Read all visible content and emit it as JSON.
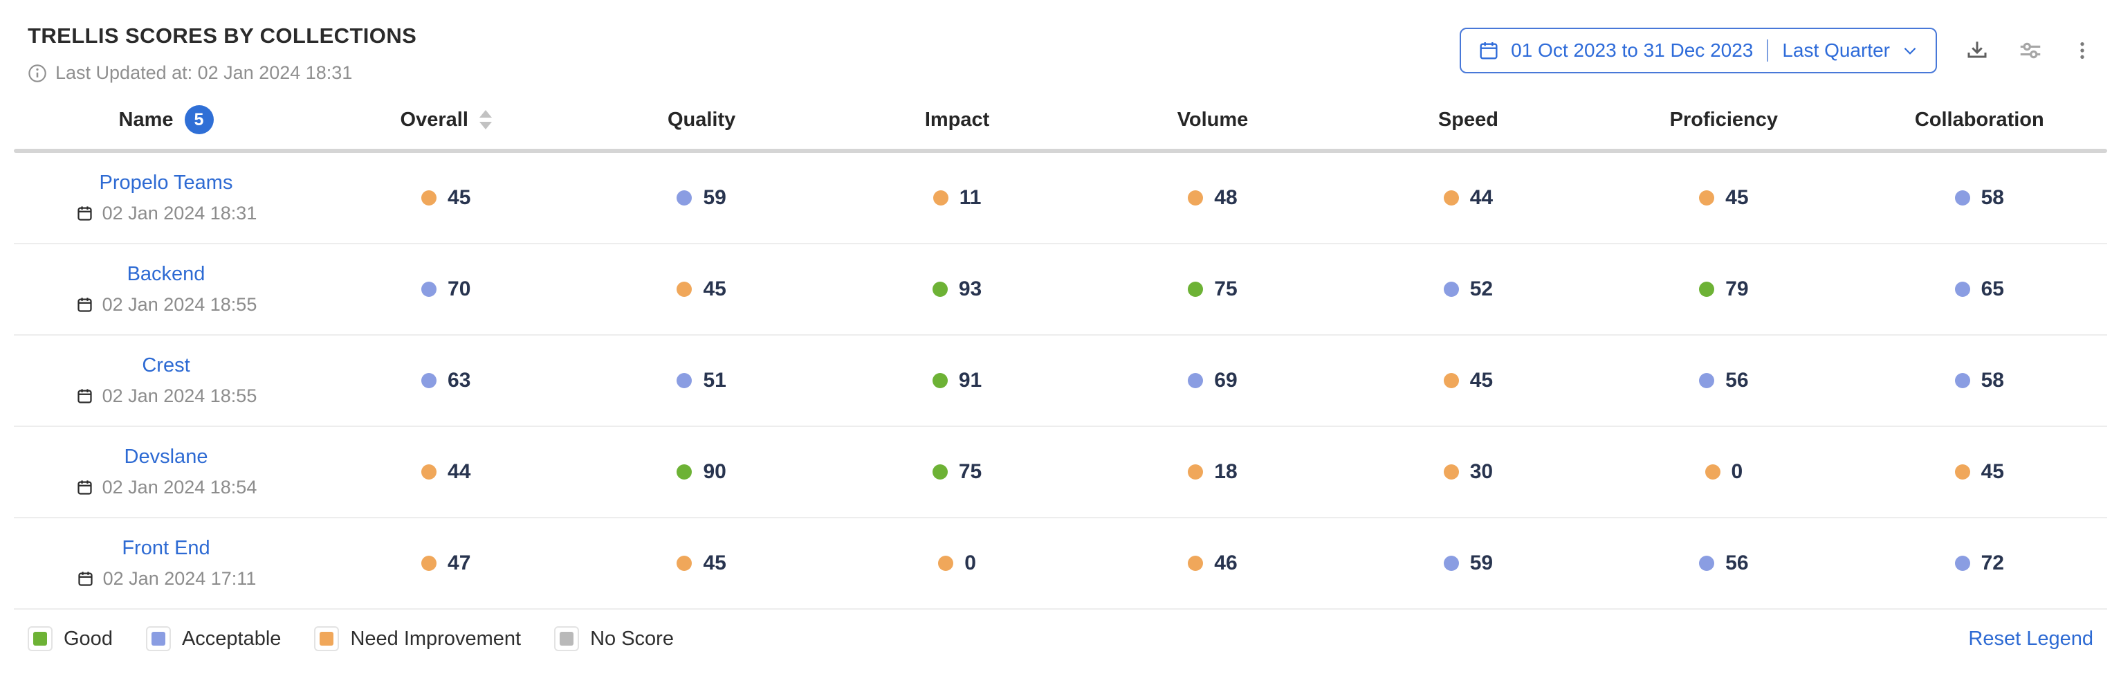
{
  "header": {
    "title": "TRELLIS SCORES BY COLLECTIONS",
    "last_updated": "Last Updated at: 02 Jan 2024 18:31",
    "date_range": {
      "range_label": "01 Oct 2023 to 31 Dec 2023",
      "preset_label": "Last Quarter"
    },
    "action_icons": [
      "download-icon",
      "sliders-icon",
      "kebab-menu-icon"
    ]
  },
  "table": {
    "columns": [
      "Name",
      "Overall",
      "Quality",
      "Impact",
      "Volume",
      "Speed",
      "Proficiency",
      "Collaboration"
    ],
    "name_badge_count": "5",
    "rows": [
      {
        "name": "Propelo Teams",
        "updated": "02 Jan 2024 18:31",
        "scores": [
          {
            "value": 45,
            "status": "need_improvement"
          },
          {
            "value": 59,
            "status": "acceptable"
          },
          {
            "value": 11,
            "status": "need_improvement"
          },
          {
            "value": 48,
            "status": "need_improvement"
          },
          {
            "value": 44,
            "status": "need_improvement"
          },
          {
            "value": 45,
            "status": "need_improvement"
          },
          {
            "value": 58,
            "status": "acceptable"
          }
        ]
      },
      {
        "name": "Backend",
        "updated": "02 Jan 2024 18:55",
        "scores": [
          {
            "value": 70,
            "status": "acceptable"
          },
          {
            "value": 45,
            "status": "need_improvement"
          },
          {
            "value": 93,
            "status": "good"
          },
          {
            "value": 75,
            "status": "good"
          },
          {
            "value": 52,
            "status": "acceptable"
          },
          {
            "value": 79,
            "status": "good"
          },
          {
            "value": 65,
            "status": "acceptable"
          }
        ]
      },
      {
        "name": "Crest",
        "updated": "02 Jan 2024 18:55",
        "scores": [
          {
            "value": 63,
            "status": "acceptable"
          },
          {
            "value": 51,
            "status": "acceptable"
          },
          {
            "value": 91,
            "status": "good"
          },
          {
            "value": 69,
            "status": "acceptable"
          },
          {
            "value": 45,
            "status": "need_improvement"
          },
          {
            "value": 56,
            "status": "acceptable"
          },
          {
            "value": 58,
            "status": "acceptable"
          }
        ]
      },
      {
        "name": "Devslane",
        "updated": "02 Jan 2024 18:54",
        "scores": [
          {
            "value": 44,
            "status": "need_improvement"
          },
          {
            "value": 90,
            "status": "good"
          },
          {
            "value": 75,
            "status": "good"
          },
          {
            "value": 18,
            "status": "need_improvement"
          },
          {
            "value": 30,
            "status": "need_improvement"
          },
          {
            "value": 0,
            "status": "need_improvement"
          },
          {
            "value": 45,
            "status": "need_improvement"
          }
        ]
      },
      {
        "name": "Front End",
        "updated": "02 Jan 2024 17:11",
        "scores": [
          {
            "value": 47,
            "status": "need_improvement"
          },
          {
            "value": 45,
            "status": "need_improvement"
          },
          {
            "value": 0,
            "status": "need_improvement"
          },
          {
            "value": 46,
            "status": "need_improvement"
          },
          {
            "value": 59,
            "status": "acceptable"
          },
          {
            "value": 56,
            "status": "acceptable"
          },
          {
            "value": 72,
            "status": "acceptable"
          }
        ]
      }
    ]
  },
  "legend": {
    "items": [
      {
        "label": "Good",
        "status": "good"
      },
      {
        "label": "Acceptable",
        "status": "acceptable"
      },
      {
        "label": "Need Improvement",
        "status": "need_improvement"
      },
      {
        "label": "No Score",
        "status": "no_score"
      }
    ],
    "reset_label": "Reset Legend"
  },
  "colors": {
    "good": "#6db235",
    "acceptable": "#8a9de2",
    "need_improvement": "#f0a75a",
    "no_score": "#b9b9b9",
    "link_blue": "#2d6ad3",
    "accent_blue": "#2e6bd9"
  }
}
